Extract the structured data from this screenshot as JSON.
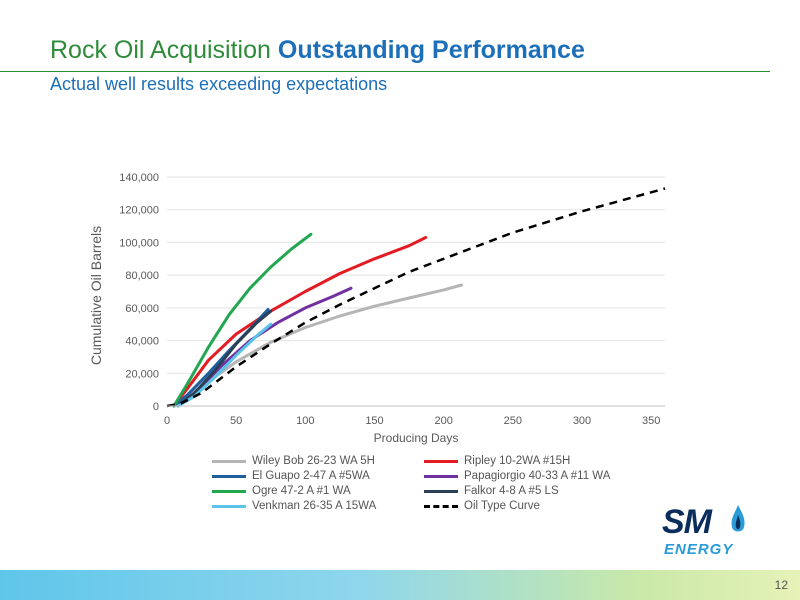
{
  "slide": {
    "title_plain": "Rock Oil Acquisition ",
    "title_accent": "Outstanding Performance",
    "subtitle": "Actual well results exceeding expectations",
    "page_number": "12",
    "logo_text": "SM",
    "logo_sub": "ENERGY",
    "logo_icon": "flame-icon",
    "accent_color": "#1c6fb8",
    "title_color": "#2e8b3a"
  },
  "chart_data": {
    "type": "line",
    "title": "",
    "xlabel": "Producing Days",
    "ylabel": "Cumulative Oil Barrels",
    "xlim": [
      0,
      360
    ],
    "ylim": [
      0,
      140000
    ],
    "xticks": [
      "0",
      "50",
      "100",
      "150",
      "200",
      "250",
      "300",
      "350"
    ],
    "xtick_values": [
      0,
      50,
      100,
      150,
      200,
      250,
      300,
      350
    ],
    "yticks": [
      "0",
      "20,000",
      "40,000",
      "60,000",
      "80,000",
      "100,000",
      "120,000",
      "140,000"
    ],
    "ytick_values": [
      0,
      20000,
      40000,
      60000,
      80000,
      100000,
      120000,
      140000
    ],
    "grid": "horizontal",
    "legend_position": "bottom",
    "series": [
      {
        "name": "Wiley Bob 26-23 WA 5H",
        "color": "#b5b5b5",
        "dash": "solid",
        "x": [
          5,
          15,
          30,
          50,
          75,
          100,
          125,
          150,
          175,
          200,
          213
        ],
        "y": [
          0,
          6000,
          15000,
          27000,
          39000,
          48000,
          55000,
          61000,
          66000,
          71000,
          74000
        ]
      },
      {
        "name": "Ripley 10-2WA #15H",
        "color": "#e31b23",
        "dash": "solid",
        "x": [
          5,
          15,
          30,
          50,
          75,
          100,
          125,
          150,
          175,
          187
        ],
        "y": [
          0,
          11000,
          28000,
          44000,
          58000,
          70000,
          81000,
          90000,
          98000,
          103000
        ]
      },
      {
        "name": "El Guapo 2-47 A #5WA",
        "color": "#1f5f9e",
        "dash": "solid",
        "x": [
          5,
          15,
          30,
          45,
          60,
          73
        ],
        "y": [
          0,
          7000,
          20000,
          34000,
          47000,
          59000
        ]
      },
      {
        "name": "Papagiorgio 40-33 A #11 WA",
        "color": "#7030a0",
        "dash": "solid",
        "x": [
          8,
          20,
          40,
          60,
          80,
          100,
          120,
          133
        ],
        "y": [
          0,
          8000,
          25000,
          40000,
          51000,
          60000,
          67000,
          72000
        ]
      },
      {
        "name": "Ogre 47-2 A #1 WA",
        "color": "#22a650",
        "dash": "solid",
        "x": [
          5,
          15,
          30,
          45,
          60,
          75,
          90,
          104
        ],
        "y": [
          0,
          14000,
          36000,
          56000,
          72000,
          85000,
          96000,
          105000
        ]
      },
      {
        "name": "Falkor 4-8 A #5 LS",
        "color": "#2b3f55",
        "dash": "solid",
        "x": [
          8,
          20,
          35,
          50,
          65,
          75
        ],
        "y": [
          0,
          8000,
          22000,
          38000,
          51000,
          58000
        ]
      },
      {
        "name": "Venkman 26-35 A 15WA",
        "color": "#5bc3e8",
        "dash": "solid",
        "x": [
          8,
          20,
          35,
          50,
          65,
          75
        ],
        "y": [
          0,
          6000,
          18000,
          31000,
          43000,
          50000
        ]
      },
      {
        "name": "Oil Type Curve",
        "color": "#000000",
        "dash": "dashed",
        "x": [
          0,
          10,
          25,
          50,
          75,
          100,
          125,
          150,
          175,
          200,
          250,
          300,
          360
        ],
        "y": [
          0,
          1500,
          8000,
          24000,
          38000,
          51000,
          62000,
          72000,
          82000,
          90000,
          106000,
          119000,
          133000
        ]
      }
    ]
  }
}
